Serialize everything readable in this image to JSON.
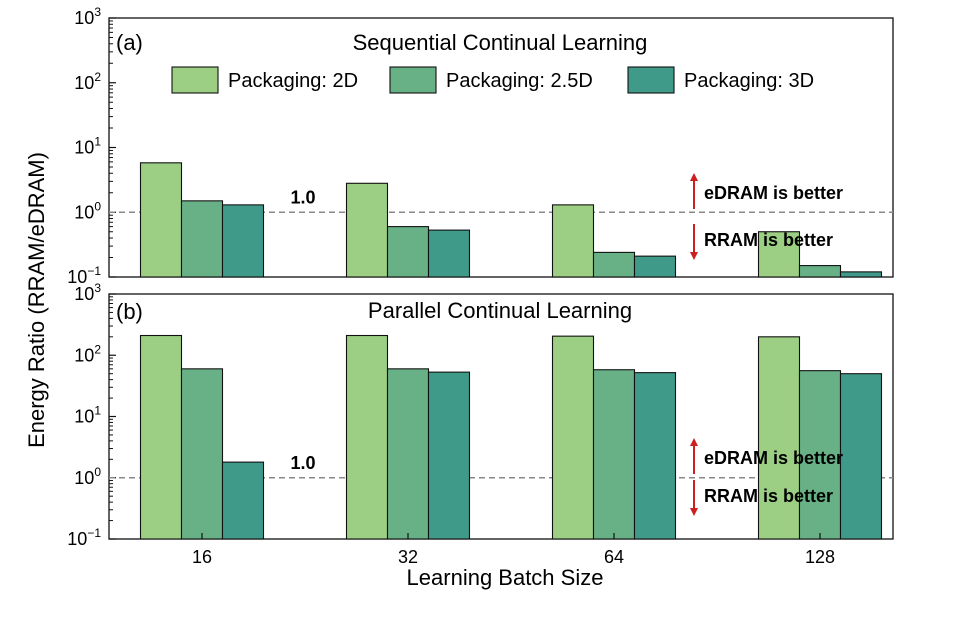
{
  "figure": {
    "ylabel": "Energy Ratio (RRAM/eDRAM)",
    "xlabel": "Learning Batch Size",
    "colors": {
      "2D": "#9ccf83",
      "2.5D": "#68b187",
      "3D": "#3f9a8a",
      "edge": "#111111",
      "reference": "#888888",
      "annotation": "#cc1f1f"
    }
  },
  "chart_data": [
    {
      "type": "bar",
      "panel_label": "(a)",
      "title": "Sequential Continual Learning",
      "categories": [
        "16",
        "32",
        "64",
        "128"
      ],
      "series": [
        {
          "name": "Packaging: 2D",
          "values": [
            5.8,
            2.8,
            1.3,
            0.5
          ]
        },
        {
          "name": "Packaging: 2.5D",
          "values": [
            1.5,
            0.6,
            0.24,
            0.15
          ]
        },
        {
          "name": "Packaging: 3D",
          "values": [
            1.3,
            0.53,
            0.21,
            0.12
          ]
        }
      ],
      "yscale": "log",
      "ylim": [
        0.1,
        1000
      ],
      "yticks": [
        "10^-1",
        "10^0",
        "10^1",
        "10^2",
        "10^3"
      ],
      "reference_line": {
        "value": 1.0,
        "label": "1.0"
      },
      "annotations": {
        "up": "eDRAM is better",
        "down": "RRAM is better"
      },
      "legend": "top-center",
      "grid": false
    },
    {
      "type": "bar",
      "panel_label": "(b)",
      "title": "Parallel Continual Learning",
      "categories": [
        "16",
        "32",
        "64",
        "128"
      ],
      "series": [
        {
          "name": "Packaging: 2D",
          "values": [
            210,
            210,
            205,
            200
          ]
        },
        {
          "name": "Packaging: 2.5D",
          "values": [
            60,
            60,
            58,
            56
          ]
        },
        {
          "name": "Packaging: 3D",
          "values": [
            1.8,
            53,
            52,
            50
          ]
        }
      ],
      "yscale": "log",
      "ylim": [
        0.1,
        1000
      ],
      "yticks": [
        "10^-1",
        "10^0",
        "10^1",
        "10^2",
        "10^3"
      ],
      "reference_line": {
        "value": 1.0,
        "label": "1.0"
      },
      "annotations": {
        "up": "eDRAM is better",
        "down": "RRAM is better"
      },
      "grid": false
    }
  ]
}
